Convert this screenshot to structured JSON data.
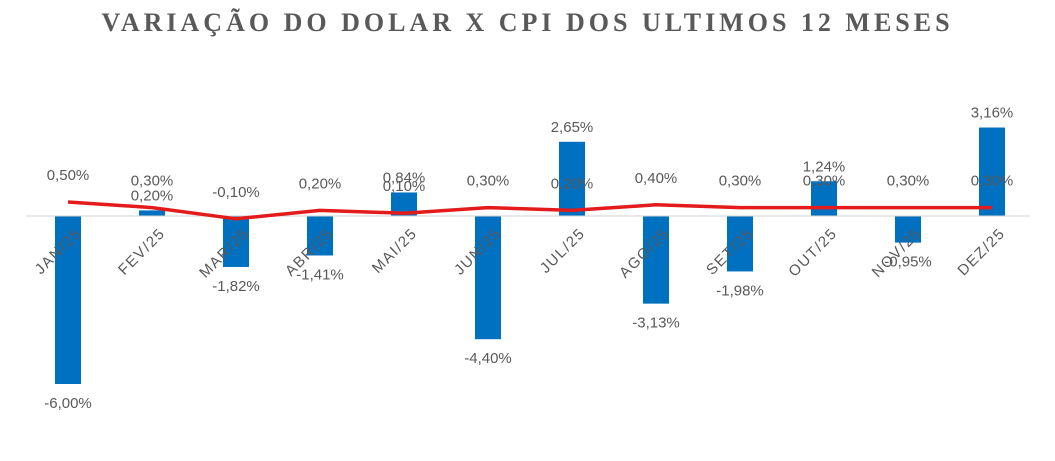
{
  "chart_data": {
    "type": "bar",
    "title": "VARIAÇÃO DO DOLAR X CPI DOS ULTIMOS 12 MESES",
    "categories": [
      "JAN/25",
      "FEV/25",
      "MAR/25",
      "ABR/25",
      "MAI/25",
      "JUN/25",
      "JUL/25",
      "AGO/25",
      "SET/25",
      "OUT/25",
      "NOV/25",
      "DEZ/25"
    ],
    "series": [
      {
        "kind": "bar",
        "color": "#0070C0",
        "values": [
          -6.0,
          0.2,
          -1.82,
          -1.41,
          0.84,
          -4.4,
          2.65,
          -3.13,
          -1.98,
          1.24,
          -0.95,
          3.16
        ],
        "labels": [
          "-6,00%",
          "0,20%",
          "-1,82%",
          "-1,41%",
          "0,84%",
          "-4,40%",
          "2,65%",
          "-3,13%",
          "-1,98%",
          "1,24%",
          "-0,95%",
          "3,16%"
        ]
      },
      {
        "kind": "line",
        "color": "#E41B1B",
        "values": [
          0.5,
          0.3,
          -0.1,
          0.2,
          0.1,
          0.3,
          0.2,
          0.4,
          0.3,
          0.3,
          0.3,
          0.3
        ],
        "labels": [
          "0,50%",
          "0,30%",
          "-0,10%",
          "0,20%",
          "0,10%",
          "0,30%",
          "0,20%",
          "0,40%",
          "0,30%",
          "0,30%",
          "0,30%",
          "0,30%"
        ]
      }
    ],
    "ylim": [
      -6.5,
      3.5
    ],
    "grid": false,
    "legend": "none"
  }
}
